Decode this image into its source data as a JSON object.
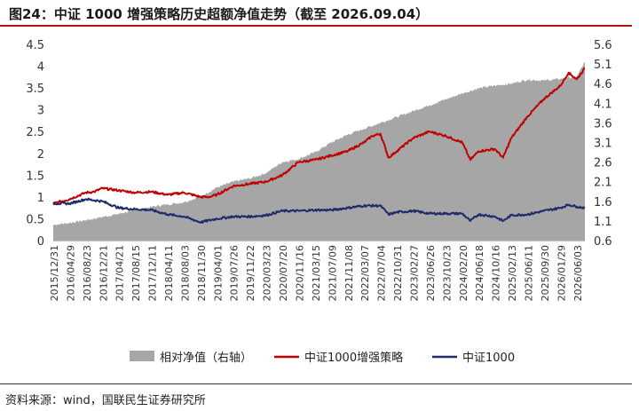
{
  "title": "图24：中证 1000 增强策略历史超额净值走势（截至 2026.09.04）",
  "source": "资料来源：wind，国联民生证券研究所",
  "chart_data": {
    "type": "line",
    "title": "图24：中证 1000 增强策略历史超额净值走势（截至 2026.09.04）",
    "xlabel": "",
    "ylabel": "",
    "y_left": {
      "min": 0,
      "max": 4.5,
      "ticks": [
        "0",
        "0.5",
        "1",
        "1.5",
        "2",
        "2.5",
        "3",
        "3.5",
        "4",
        "4.5"
      ]
    },
    "y_right": {
      "min": 0.6,
      "max": 5.6,
      "ticks": [
        "0.6",
        "1.1",
        "1.6",
        "2.1",
        "2.6",
        "3.1",
        "3.6",
        "4.1",
        "4.6",
        "5.1",
        "5.6"
      ]
    },
    "x_tick_labels": [
      "2015/12/31",
      "2016/04/29",
      "2016/08/23",
      "2016/12/21",
      "2017/04/21",
      "2017/08/15",
      "2017/12/11",
      "2018/04/11",
      "2018/08/03",
      "2018/11/30",
      "2019/04/01",
      "2019/07/26",
      "2019/11/22",
      "2020/03/23",
      "2020/07/20",
      "2020/11/16",
      "2021/03/15",
      "2021/07/09",
      "2021/11/08",
      "2022/03/07",
      "2022/07/04",
      "2022/10/31",
      "2023/02/27",
      "2023/06/26",
      "2023/10/23",
      "2024/02/20",
      "2024/06/18",
      "2024/10/16",
      "2025/02/13",
      "2025/06/11",
      "2025/09/30",
      "2026/01/29",
      "2026/06/03"
    ],
    "legend": "bottom",
    "grid": false,
    "series": [
      {
        "name": "相对净值（右轴）",
        "kind": "area",
        "axis": "right",
        "color": "#a6a6a6",
        "points": [
          [
            0,
            1.0
          ],
          [
            2,
            1.05
          ],
          [
            4,
            1.12
          ],
          [
            6,
            1.2
          ],
          [
            8,
            1.28
          ],
          [
            10,
            1.38
          ],
          [
            12,
            1.46
          ],
          [
            14,
            1.52
          ],
          [
            16,
            1.58
          ],
          [
            18,
            1.72
          ],
          [
            20,
            1.95
          ],
          [
            22,
            2.1
          ],
          [
            24,
            2.18
          ],
          [
            26,
            2.32
          ],
          [
            28,
            2.6
          ],
          [
            30,
            2.68
          ],
          [
            32,
            2.85
          ],
          [
            34,
            3.1
          ],
          [
            36,
            3.3
          ],
          [
            38,
            3.45
          ],
          [
            40,
            3.6
          ],
          [
            42,
            3.75
          ],
          [
            44,
            3.9
          ],
          [
            46,
            4.05
          ],
          [
            48,
            4.2
          ],
          [
            50,
            4.35
          ],
          [
            52,
            4.48
          ],
          [
            54,
            4.55
          ],
          [
            56,
            4.6
          ],
          [
            58,
            4.7
          ],
          [
            60,
            4.68
          ],
          [
            62,
            4.72
          ],
          [
            64,
            4.78
          ],
          [
            65,
            5.15
          ]
        ]
      },
      {
        "name": "中证1000增强策略",
        "kind": "line",
        "axis": "left",
        "color": "#c00000",
        "points": [
          [
            0,
            0.85
          ],
          [
            2,
            0.95
          ],
          [
            4,
            1.1
          ],
          [
            5,
            1.12
          ],
          [
            6,
            1.2
          ],
          [
            8,
            1.15
          ],
          [
            10,
            1.1
          ],
          [
            12,
            1.12
          ],
          [
            14,
            1.05
          ],
          [
            16,
            1.1
          ],
          [
            18,
            1.0
          ],
          [
            19,
            1.0
          ],
          [
            20,
            1.05
          ],
          [
            22,
            1.25
          ],
          [
            24,
            1.3
          ],
          [
            26,
            1.35
          ],
          [
            28,
            1.5
          ],
          [
            30,
            1.8
          ],
          [
            32,
            1.85
          ],
          [
            34,
            1.95
          ],
          [
            36,
            2.05
          ],
          [
            38,
            2.25
          ],
          [
            39,
            2.4
          ],
          [
            40,
            2.45
          ],
          [
            41,
            1.9
          ],
          [
            42,
            2.05
          ],
          [
            44,
            2.35
          ],
          [
            46,
            2.5
          ],
          [
            48,
            2.4
          ],
          [
            50,
            2.25
          ],
          [
            51,
            1.85
          ],
          [
            52,
            2.05
          ],
          [
            54,
            2.1
          ],
          [
            55,
            1.9
          ],
          [
            56,
            2.35
          ],
          [
            58,
            2.85
          ],
          [
            60,
            3.25
          ],
          [
            62,
            3.55
          ],
          [
            63,
            3.85
          ],
          [
            64,
            3.7
          ],
          [
            65,
            3.95
          ]
        ]
      },
      {
        "name": "中证1000",
        "kind": "line",
        "axis": "left",
        "color": "#1f2a6b",
        "points": [
          [
            0,
            0.85
          ],
          [
            2,
            0.85
          ],
          [
            4,
            0.95
          ],
          [
            6,
            0.9
          ],
          [
            8,
            0.75
          ],
          [
            10,
            0.72
          ],
          [
            12,
            0.7
          ],
          [
            14,
            0.6
          ],
          [
            16,
            0.55
          ],
          [
            18,
            0.42
          ],
          [
            20,
            0.5
          ],
          [
            22,
            0.55
          ],
          [
            24,
            0.55
          ],
          [
            26,
            0.58
          ],
          [
            28,
            0.68
          ],
          [
            30,
            0.68
          ],
          [
            32,
            0.7
          ],
          [
            34,
            0.7
          ],
          [
            36,
            0.75
          ],
          [
            38,
            0.8
          ],
          [
            40,
            0.8
          ],
          [
            41,
            0.6
          ],
          [
            42,
            0.65
          ],
          [
            44,
            0.68
          ],
          [
            46,
            0.62
          ],
          [
            48,
            0.62
          ],
          [
            50,
            0.62
          ],
          [
            51,
            0.45
          ],
          [
            52,
            0.6
          ],
          [
            54,
            0.55
          ],
          [
            55,
            0.45
          ],
          [
            56,
            0.58
          ],
          [
            58,
            0.6
          ],
          [
            60,
            0.68
          ],
          [
            62,
            0.75
          ],
          [
            63,
            0.82
          ],
          [
            64,
            0.78
          ],
          [
            65,
            0.75
          ]
        ]
      }
    ]
  }
}
